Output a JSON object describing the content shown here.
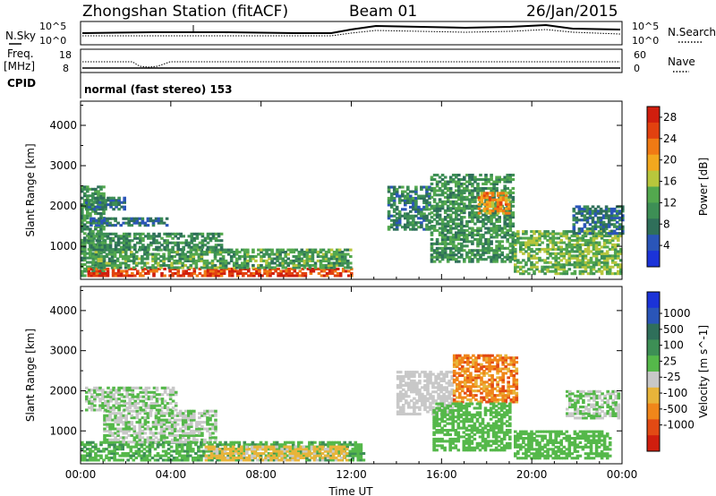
{
  "header": {
    "station": "Zhongshan Station (fitACF)",
    "beam": "Beam 01",
    "date": "26/Jan/2015"
  },
  "side_labels": {
    "nsky": "N.Sky",
    "freq_line1": "Freq.",
    "freq_line2": "[MHz]",
    "cpid": "CPID",
    "nsearch": "N.Search",
    "nave": "Nave"
  },
  "noise_panel": {
    "left_ticks": [
      "10^5",
      "10^0"
    ],
    "right_ticks": [
      "10^5",
      "10^0"
    ]
  },
  "freq_panel": {
    "left_ticks": [
      "18",
      "8"
    ],
    "right_ticks": [
      "60",
      "0"
    ]
  },
  "cpid_panel": {
    "text": "normal (fast stereo) 153"
  },
  "colors": {
    "power": [
      "#1b33d8",
      "#2a55b8",
      "#2f6f5a",
      "#3d8f55",
      "#53a84e",
      "#b8c63c",
      "#f2a81e",
      "#f07a14",
      "#e2410f",
      "#d01e0e"
    ],
    "velocity": [
      "#1b33d8",
      "#2a55b8",
      "#2f6f5a",
      "#3d8f55",
      "#55b84a",
      "#c8c8c8",
      "#e8b43a",
      "#f0861a",
      "#e24a14",
      "#d01e0e"
    ]
  },
  "chart_data": [
    {
      "type": "heatmap",
      "panel": "power",
      "ylabel": "Slant Range [km]",
      "y_ticks": [
        "1000",
        "2000",
        "3000",
        "4000"
      ],
      "x_tick_labels": [
        "00:00",
        "04:00",
        "08:00",
        "12:00",
        "16:00",
        "20:00",
        "00:00"
      ],
      "xlim": [
        0,
        24
      ],
      "ylim": [
        180,
        4600
      ],
      "colorbar": {
        "label": "Power [dB]",
        "ticks": [
          "4",
          "8",
          "12",
          "16",
          "20",
          "24",
          "28"
        ],
        "range": [
          0,
          30
        ]
      },
      "echo_regions": [
        {
          "t0": 0.0,
          "t1": 1.0,
          "r0": 250,
          "r1": 2500,
          "v": 11
        },
        {
          "t0": 0.3,
          "t1": 12.0,
          "r0": 250,
          "r1": 450,
          "v": 26
        },
        {
          "t0": 0.5,
          "t1": 12.0,
          "r0": 450,
          "r1": 900,
          "v": 12
        },
        {
          "t0": 0.3,
          "t1": 6.2,
          "r0": 900,
          "r1": 1300,
          "v": 10
        },
        {
          "t0": 0.4,
          "t1": 3.8,
          "r0": 1500,
          "r1": 1700,
          "v": 7
        },
        {
          "t0": 0.2,
          "t1": 2.0,
          "r0": 1900,
          "r1": 2200,
          "v": 8
        },
        {
          "t0": 13.6,
          "t1": 15.5,
          "r0": 1400,
          "r1": 2500,
          "v": 9
        },
        {
          "t0": 15.5,
          "t1": 19.2,
          "r0": 600,
          "r1": 2800,
          "v": 11
        },
        {
          "t0": 17.6,
          "t1": 19.0,
          "r0": 1800,
          "r1": 2300,
          "v": 21
        },
        {
          "t0": 19.2,
          "t1": 24.0,
          "r0": 300,
          "r1": 1400,
          "v": 14
        },
        {
          "t0": 21.8,
          "t1": 24.0,
          "r0": 1300,
          "r1": 2000,
          "v": 7
        }
      ]
    },
    {
      "type": "heatmap",
      "panel": "velocity",
      "xlabel": "Time UT",
      "ylabel": "Slant Range [km]",
      "y_ticks": [
        "1000",
        "2000",
        "3000",
        "4000"
      ],
      "x_tick_labels": [
        "00:00",
        "04:00",
        "08:00",
        "12:00",
        "16:00",
        "20:00",
        "00:00"
      ],
      "xlim": [
        0,
        24
      ],
      "ylim": [
        180,
        4600
      ],
      "colorbar": {
        "label": "Velocity [m s^-1]",
        "ticks": [
          "1000",
          "500",
          "100",
          "25",
          "-25",
          "-100",
          "-500",
          "-1000"
        ],
        "range": [
          -1200,
          1200
        ]
      },
      "echo_regions": [
        {
          "t0": 0.0,
          "t1": 12.5,
          "r0": 250,
          "r1": 700,
          "v": 200
        },
        {
          "t0": 1.0,
          "t1": 6.0,
          "r0": 700,
          "r1": 1500,
          "v": 0
        },
        {
          "t0": 0.2,
          "t1": 4.2,
          "r0": 1500,
          "r1": 2100,
          "v": 0
        },
        {
          "t0": 5.5,
          "t1": 11.8,
          "r0": 250,
          "r1": 600,
          "v": -300
        },
        {
          "t0": 14.0,
          "t1": 16.5,
          "r0": 1400,
          "r1": 2500,
          "v": -150
        },
        {
          "t0": 16.5,
          "t1": 19.3,
          "r0": 1700,
          "r1": 2900,
          "v": -600
        },
        {
          "t0": 15.6,
          "t1": 19.0,
          "r0": 500,
          "r1": 1700,
          "v": 150
        },
        {
          "t0": 19.2,
          "t1": 23.5,
          "r0": 300,
          "r1": 1000,
          "v": 120
        },
        {
          "t0": 21.5,
          "t1": 23.8,
          "r0": 1300,
          "r1": 2000,
          "v": 0
        }
      ]
    }
  ]
}
